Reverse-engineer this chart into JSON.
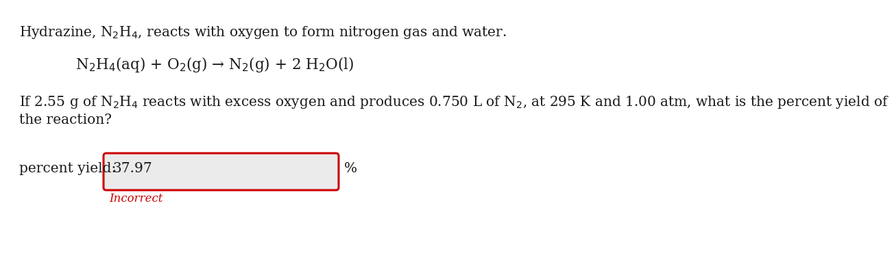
{
  "bg_color": "#ffffff",
  "text_color": "#1a1a1a",
  "incorrect_color": "#cc0000",
  "box_border_color": "#cc0000",
  "box_fill_color": "#ebebeb",
  "line1": "Hydrazine, N$_2$H$_4$, reacts with oxygen to form nitrogen gas and water.",
  "equation": "N$_2$H$_4$(aq) + O$_2$(g) → N$_2$(g) + 2 H$_2$O(l)",
  "question_line1": "If 2.55 g of N$_2$H$_4$ reacts with excess oxygen and produces 0.750 L of N$_2$, at 295 K and 1.00 atm, what is the percent yield of",
  "question_line2": "the reaction?",
  "label_text": "percent yield:",
  "answer_value": "37.97",
  "unit_text": "%",
  "incorrect_text": "Incorrect",
  "font_size_main": 14.5,
  "font_size_eq": 15.5,
  "font_size_label": 14.5,
  "font_size_answer": 14.5,
  "font_size_incorrect": 12
}
